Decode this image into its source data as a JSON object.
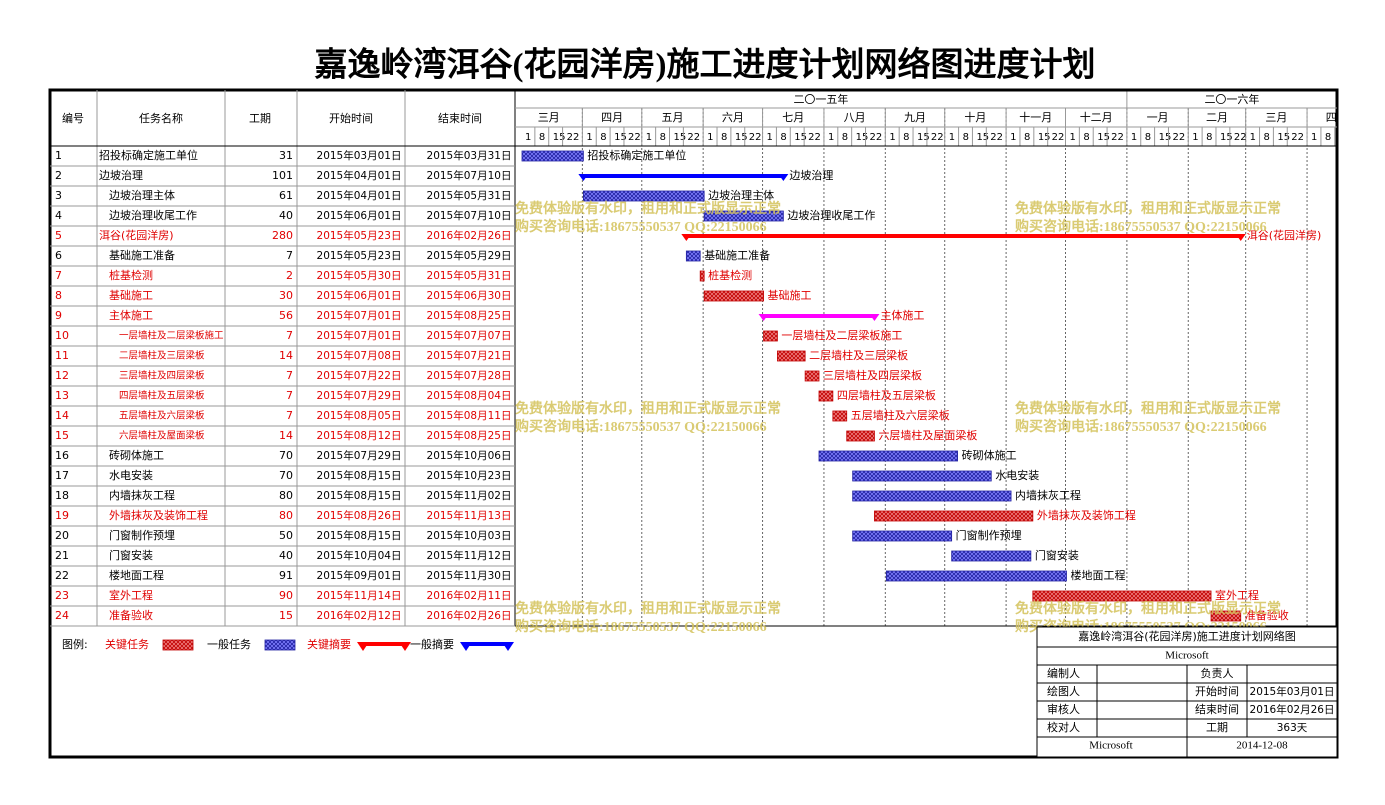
{
  "title": "嘉逸岭湾洱谷(花园洋房)施工进度计划网络图进度计划",
  "columns": [
    "编号",
    "任务名称",
    "工期",
    "开始时间",
    "结束时间"
  ],
  "timeline": {
    "years": [
      {
        "label": "二〇一五年",
        "months": [
          "三月",
          "四月",
          "五月",
          "六月",
          "七月",
          "八月",
          "九月",
          "十月",
          "十一月",
          "十二月"
        ]
      },
      {
        "label": "二〇一六年",
        "months": [
          "一月",
          "二月",
          "三月",
          "四月"
        ]
      }
    ],
    "days": [
      "1",
      "8",
      "15",
      "22"
    ]
  },
  "tasks": [
    {
      "id": 1,
      "name": "招投标确定施工单位",
      "duration": 31,
      "start": "2015年03月01日",
      "end": "2015年03月31日",
      "critical": false,
      "summary": false,
      "level": 0
    },
    {
      "id": 2,
      "name": "边坡治理",
      "duration": 101,
      "start": "2015年04月01日",
      "end": "2015年07月10日",
      "critical": false,
      "summary": true,
      "level": 0
    },
    {
      "id": 3,
      "name": "边坡治理主体",
      "duration": 61,
      "start": "2015年04月01日",
      "end": "2015年05月31日",
      "critical": false,
      "summary": false,
      "level": 1
    },
    {
      "id": 4,
      "name": "边坡治理收尾工作",
      "duration": 40,
      "start": "2015年06月01日",
      "end": "2015年07月10日",
      "critical": false,
      "summary": false,
      "level": 1
    },
    {
      "id": 5,
      "name": "洱谷(花园洋房)",
      "duration": 280,
      "start": "2015年05月23日",
      "end": "2016年02月26日",
      "critical": true,
      "summary": true,
      "level": 0
    },
    {
      "id": 6,
      "name": "基础施工准备",
      "duration": 7,
      "start": "2015年05月23日",
      "end": "2015年05月29日",
      "critical": false,
      "summary": false,
      "level": 1
    },
    {
      "id": 7,
      "name": "桩基检测",
      "duration": 2,
      "start": "2015年05月30日",
      "end": "2015年05月31日",
      "critical": true,
      "summary": false,
      "level": 1
    },
    {
      "id": 8,
      "name": "基础施工",
      "duration": 30,
      "start": "2015年06月01日",
      "end": "2015年06月30日",
      "critical": true,
      "summary": false,
      "level": 1
    },
    {
      "id": 9,
      "name": "主体施工",
      "duration": 56,
      "start": "2015年07月01日",
      "end": "2015年08月25日",
      "critical": true,
      "summary": true,
      "level": 1,
      "color": "#ff00ff"
    },
    {
      "id": 10,
      "name": "一层墙柱及二层梁板施工",
      "duration": 7,
      "start": "2015年07月01日",
      "end": "2015年07月07日",
      "critical": true,
      "summary": false,
      "level": 2
    },
    {
      "id": 11,
      "name": "二层墙柱及三层梁板",
      "duration": 14,
      "start": "2015年07月08日",
      "end": "2015年07月21日",
      "critical": true,
      "summary": false,
      "level": 2
    },
    {
      "id": 12,
      "name": "三层墙柱及四层梁板",
      "duration": 7,
      "start": "2015年07月22日",
      "end": "2015年07月28日",
      "critical": true,
      "summary": false,
      "level": 2
    },
    {
      "id": 13,
      "name": "四层墙柱及五层梁板",
      "duration": 7,
      "start": "2015年07月29日",
      "end": "2015年08月04日",
      "critical": true,
      "summary": false,
      "level": 2
    },
    {
      "id": 14,
      "name": "五层墙柱及六层梁板",
      "duration": 7,
      "start": "2015年08月05日",
      "end": "2015年08月11日",
      "critical": true,
      "summary": false,
      "level": 2
    },
    {
      "id": 15,
      "name": "六层墙柱及屋面梁板",
      "duration": 14,
      "start": "2015年08月12日",
      "end": "2015年08月25日",
      "critical": true,
      "summary": false,
      "level": 2
    },
    {
      "id": 16,
      "name": "砖砌体施工",
      "duration": 70,
      "start": "2015年07月29日",
      "end": "2015年10月06日",
      "critical": false,
      "summary": false,
      "level": 1
    },
    {
      "id": 17,
      "name": "水电安装",
      "duration": 70,
      "start": "2015年08月15日",
      "end": "2015年10月23日",
      "critical": false,
      "summary": false,
      "level": 1
    },
    {
      "id": 18,
      "name": "内墙抹灰工程",
      "duration": 80,
      "start": "2015年08月15日",
      "end": "2015年11月02日",
      "critical": false,
      "summary": false,
      "level": 1
    },
    {
      "id": 19,
      "name": "外墙抹灰及装饰工程",
      "duration": 80,
      "start": "2015年08月26日",
      "end": "2015年11月13日",
      "critical": true,
      "summary": false,
      "level": 1
    },
    {
      "id": 20,
      "name": "门窗制作预埋",
      "duration": 50,
      "start": "2015年08月15日",
      "end": "2015年10月03日",
      "critical": false,
      "summary": false,
      "level": 1
    },
    {
      "id": 21,
      "name": "门窗安装",
      "duration": 40,
      "start": "2015年10月04日",
      "end": "2015年11月12日",
      "critical": false,
      "summary": false,
      "level": 1
    },
    {
      "id": 22,
      "name": "楼地面工程",
      "duration": 91,
      "start": "2015年09月01日",
      "end": "2015年11月30日",
      "critical": false,
      "summary": false,
      "level": 1
    },
    {
      "id": 23,
      "name": "室外工程",
      "duration": 90,
      "start": "2015年11月14日",
      "end": "2016年02月11日",
      "critical": true,
      "summary": false,
      "level": 1
    },
    {
      "id": 24,
      "name": "准备验收",
      "duration": 15,
      "start": "2016年02月12日",
      "end": "2016年02月26日",
      "critical": true,
      "summary": false,
      "level": 1
    }
  ],
  "watermark": [
    "免费体验版有水印，租用和正式版显示正常",
    "购买咨询电话:18675550537 QQ:22150066"
  ],
  "legend": {
    "label": "图例:",
    "items": [
      {
        "name": "关键任务",
        "critical": true,
        "summary": false
      },
      {
        "name": "一般任务",
        "critical": false,
        "summary": false
      },
      {
        "name": "关键摘要",
        "critical": true,
        "summary": true
      },
      {
        "name": "一般摘要",
        "critical": false,
        "summary": true
      }
    ]
  },
  "info": {
    "title": "嘉逸岭湾洱谷(花园洋房)施工进度计划网络图",
    "company": "Microsoft",
    "rows": [
      {
        "left": "编制人",
        "right": "负责人"
      },
      {
        "left": "绘图人",
        "right": "开始时间",
        "value": "2015年03月01日"
      },
      {
        "left": "审核人",
        "right": "结束时间",
        "value": "2016年02月26日"
      },
      {
        "left": "校对人",
        "right": "工期",
        "value": "363天"
      }
    ],
    "footer": [
      "Microsoft",
      "2014-12-08"
    ]
  }
}
